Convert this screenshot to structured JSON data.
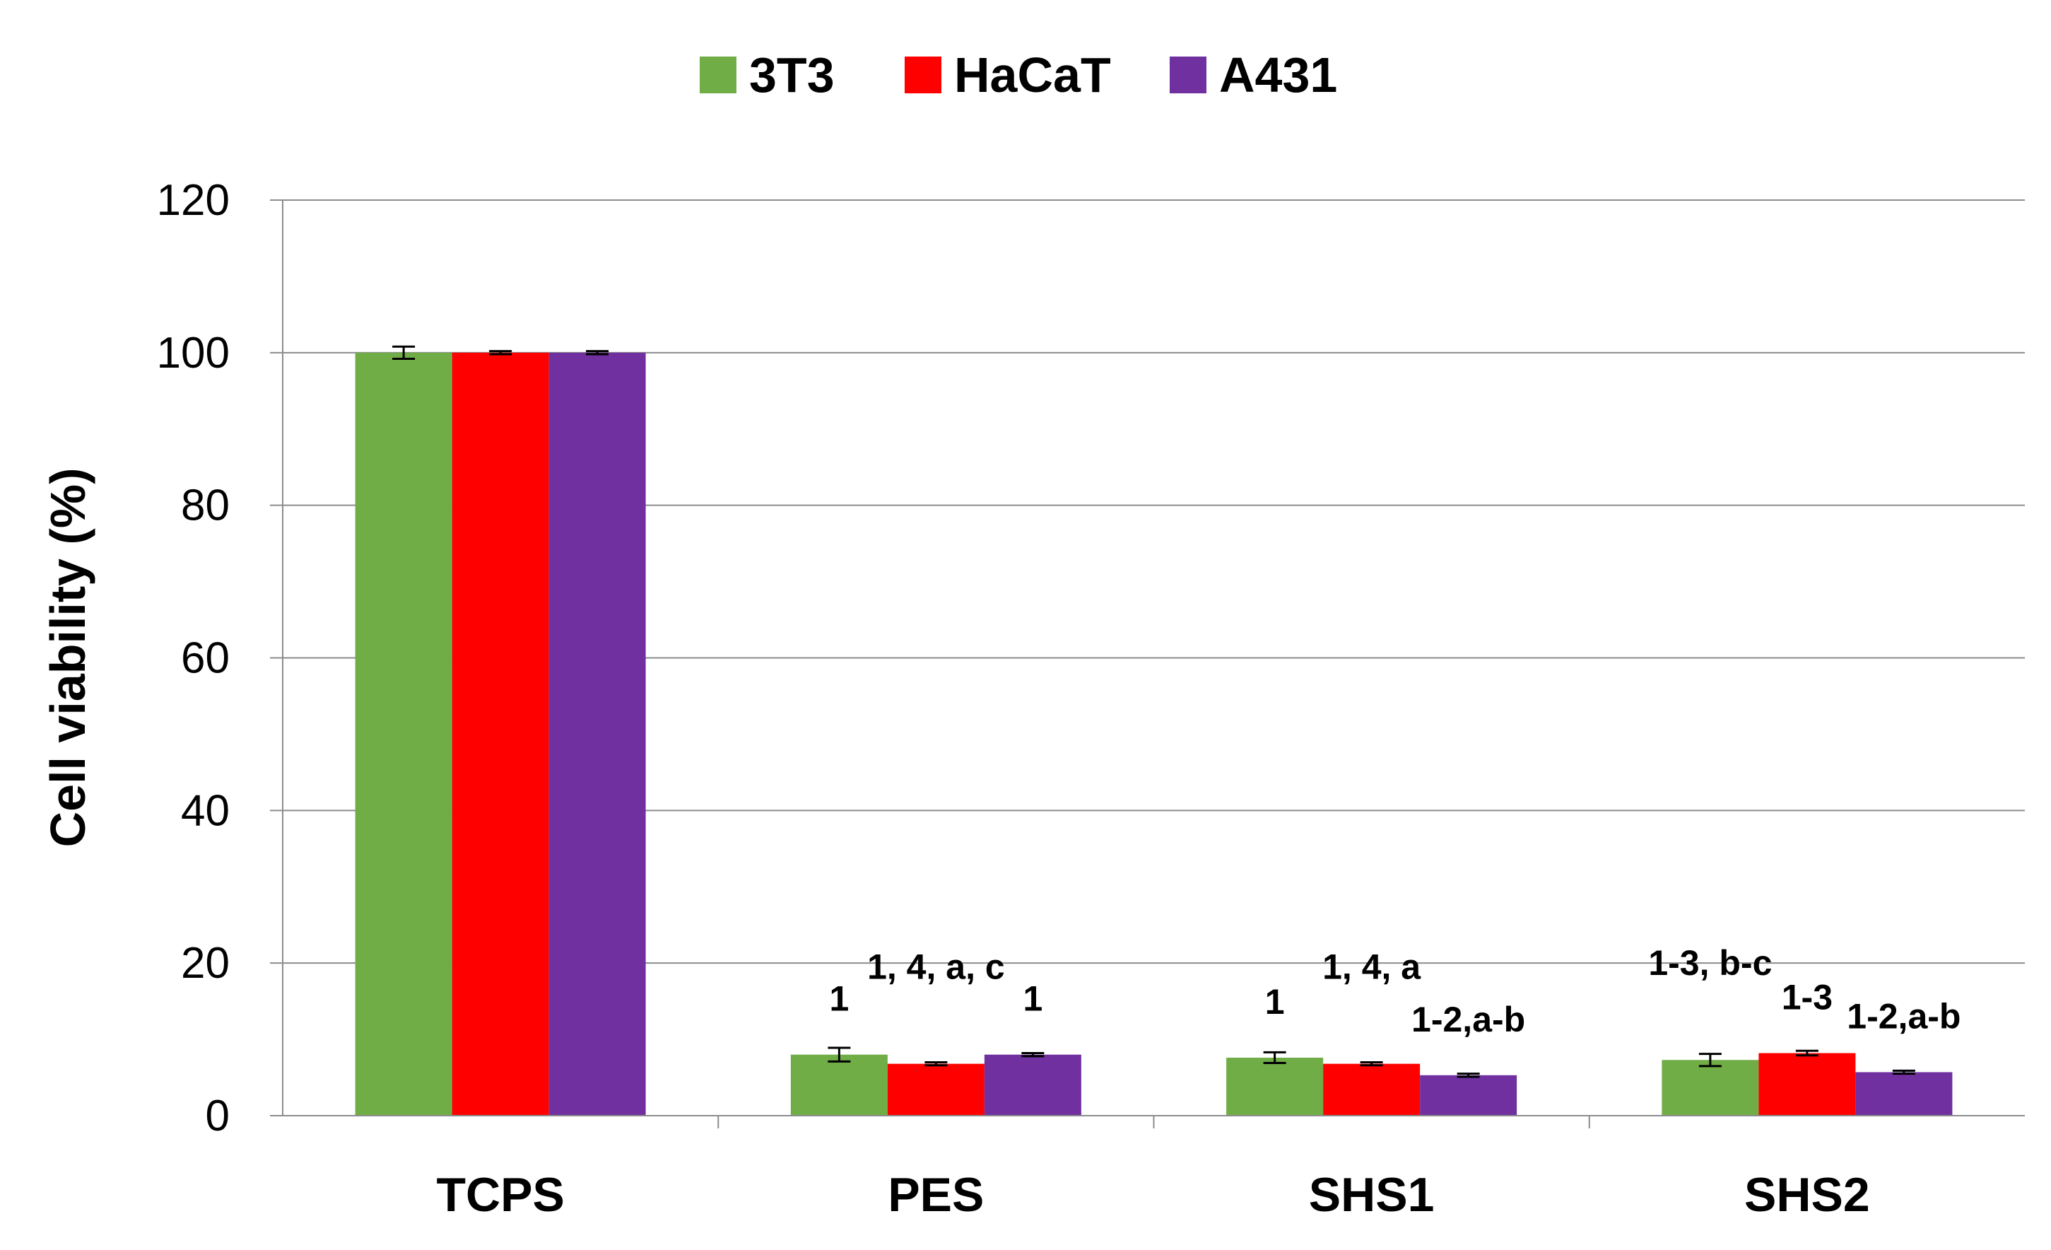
{
  "chart_data": {
    "type": "bar",
    "title": "",
    "xlabel": "",
    "ylabel": "Cell viability (%)",
    "ylim": [
      0,
      120
    ],
    "yticks": [
      0,
      20,
      40,
      60,
      80,
      100,
      120
    ],
    "grid": true,
    "legend_position": "top",
    "categories": [
      "TCPS",
      "PES",
      "SHS1",
      "SHS2"
    ],
    "series": [
      {
        "name": "3T3",
        "color": "#70AD47",
        "values": [
          100,
          8.0,
          7.6,
          7.3
        ],
        "errors": [
          0.8,
          0.9,
          0.7,
          0.8
        ],
        "annotations": [
          "",
          "1",
          "1",
          "1-3, b-c"
        ]
      },
      {
        "name": "HaCaT",
        "color": "#FF0000",
        "values": [
          100,
          6.8,
          6.8,
          8.2
        ],
        "errors": [
          0.2,
          0.2,
          0.2,
          0.3
        ],
        "annotations": [
          "",
          "1, 4, a, c",
          "1, 4, a",
          "1-3"
        ]
      },
      {
        "name": "A431",
        "color": "#7030A0",
        "values": [
          100,
          8.0,
          5.3,
          5.7
        ],
        "errors": [
          0.2,
          0.2,
          0.2,
          0.2
        ],
        "annotations": [
          "",
          "1",
          "1-2,a-b",
          "1-2,a-b"
        ]
      }
    ]
  }
}
